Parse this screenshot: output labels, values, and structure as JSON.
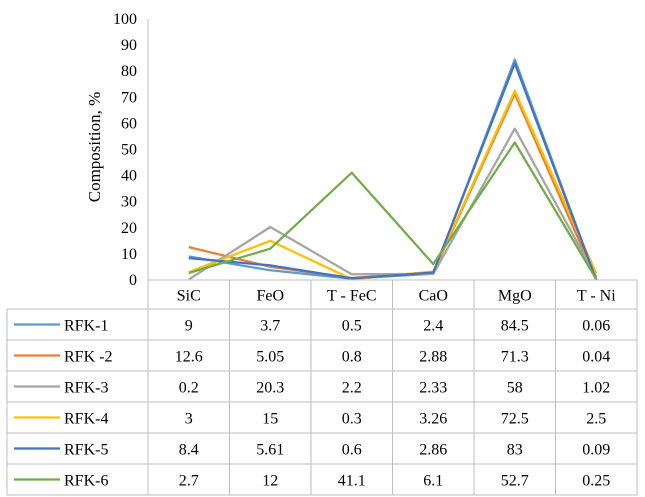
{
  "chart_data": {
    "type": "line",
    "ylabel": "Composition, %",
    "ylim": [
      0,
      100
    ],
    "yticks": [
      0,
      10,
      20,
      30,
      40,
      50,
      60,
      70,
      80,
      90,
      100
    ],
    "categories": [
      "SiC",
      "FeO",
      "T - FeC",
      "CaO",
      "MgO",
      "T - Ni"
    ],
    "grid": false,
    "legend": "data-table",
    "series": [
      {
        "name": "RFK-1",
        "color": "#5B9BD5",
        "values": [
          9,
          3.7,
          0.5,
          2.4,
          84.5,
          0.06
        ]
      },
      {
        "name": "RFK-2",
        "color": "#ED7D31",
        "values": [
          12.6,
          5.05,
          0.8,
          2.88,
          71.3,
          0.04
        ]
      },
      {
        "name": "RFK-3",
        "color": "#A5A5A5",
        "values": [
          0.2,
          20.3,
          2.2,
          2.33,
          58,
          1.02
        ]
      },
      {
        "name": "RFK-4",
        "color": "#FFC000",
        "values": [
          3,
          15,
          0.3,
          3.26,
          72.5,
          2.5
        ]
      },
      {
        "name": "RFK-5",
        "color": "#4472C4",
        "values": [
          8.4,
          5.61,
          0.6,
          2.86,
          83,
          0.09
        ]
      },
      {
        "name": "RFK-6",
        "color": "#70AD47",
        "values": [
          2.7,
          12,
          41.1,
          6.1,
          52.7,
          0.25
        ]
      }
    ],
    "table_text": [
      [
        "9",
        "3.7",
        "0.5",
        "2.4",
        "84.5",
        "0.06"
      ],
      [
        "12.6",
        "5.05",
        "0.8",
        "2.88",
        "71.3",
        "0.04"
      ],
      [
        "0.2",
        "20.3",
        "2.2",
        "2.33",
        "58",
        "1.02"
      ],
      [
        "3",
        "15",
        "0.3",
        "3.26",
        "72.5",
        "2.5"
      ],
      [
        "8.4",
        "5.61",
        "0.6",
        "2.86",
        "83",
        "0.09"
      ],
      [
        "2.7",
        "12",
        "41.1",
        "6.1",
        "52.7",
        "0.25"
      ]
    ],
    "legend_labels": [
      "RFK-1",
      "RFK -2",
      "RFK-3",
      "RFK-4",
      "RFK-5",
      "RFK-6"
    ]
  }
}
